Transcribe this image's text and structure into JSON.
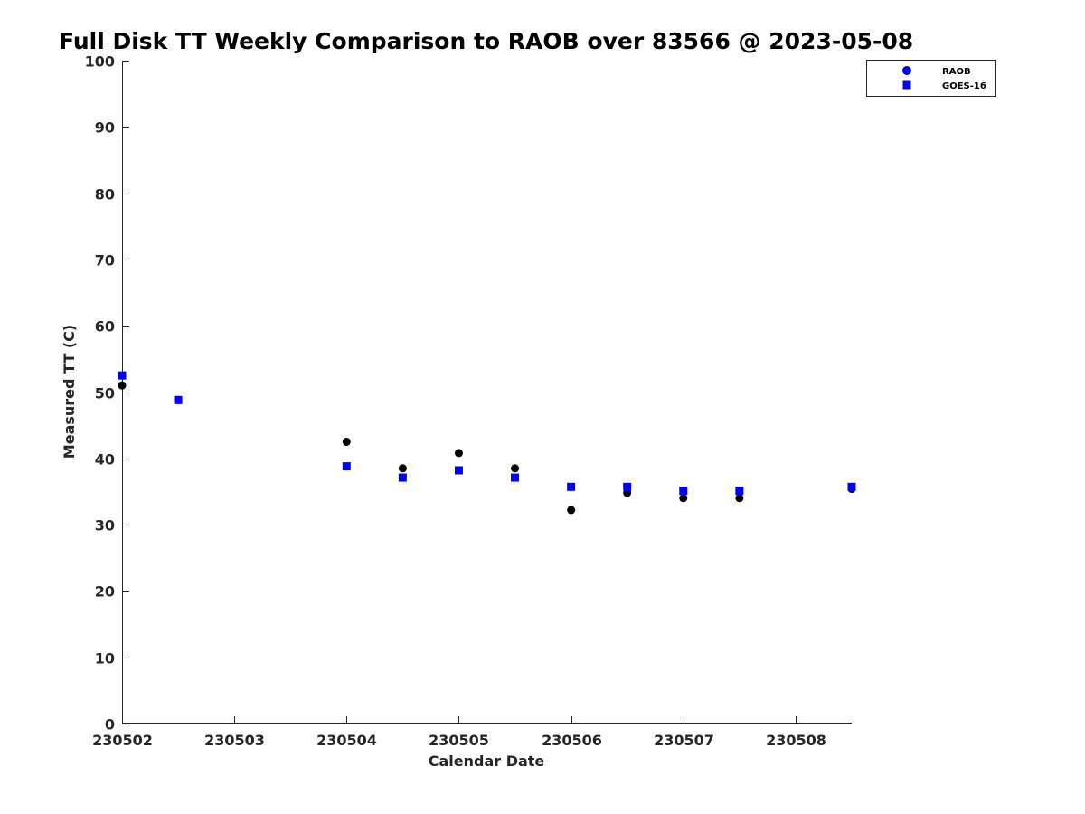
{
  "chart_data": {
    "type": "scatter",
    "title": "Full Disk TT Weekly Comparison to RAOB over 83566 @ 2023-05-08",
    "xlabel": "Calendar Date",
    "ylabel": "Measured TT (C)",
    "xlim": [
      0,
      6.5
    ],
    "ylim": [
      0,
      100
    ],
    "x_ticks": [
      0,
      1,
      2,
      3,
      4,
      5,
      6
    ],
    "x_tick_labels": [
      "230502",
      "230503",
      "230504",
      "230505",
      "230506",
      "230507",
      "230508"
    ],
    "y_ticks": [
      0,
      10,
      20,
      30,
      40,
      50,
      60,
      70,
      80,
      90,
      100
    ],
    "y_tick_labels": [
      "0",
      "10",
      "20",
      "30",
      "40",
      "50",
      "60",
      "70",
      "80",
      "90",
      "100"
    ],
    "grid": false,
    "legend_position": "top-right",
    "series": [
      {
        "name": "RAOB",
        "marker": "circle",
        "color": "#000000",
        "legend_color": "#0000ff",
        "x": [
          0,
          0.5,
          2,
          2.5,
          3,
          3.5,
          4,
          4.5,
          5,
          5.5,
          6.5
        ],
        "y": [
          51.0,
          48.8,
          42.5,
          38.5,
          40.8,
          38.5,
          32.2,
          34.8,
          34.0,
          34.0,
          35.4
        ]
      },
      {
        "name": "GOES-16",
        "marker": "square",
        "color": "#0000ff",
        "legend_color": "#0000ff",
        "x": [
          0,
          0.5,
          2,
          2.5,
          3,
          3.5,
          4,
          4.5,
          5,
          5.5,
          6.5
        ],
        "y": [
          52.5,
          48.8,
          38.8,
          37.1,
          38.2,
          37.1,
          35.7,
          35.7,
          35.1,
          35.1,
          35.7
        ]
      }
    ]
  }
}
